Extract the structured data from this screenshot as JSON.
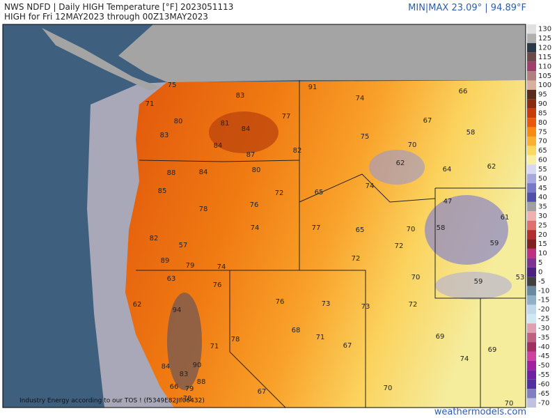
{
  "header": {
    "title": "NWS NDFD | Daily HIGH Temperature [°F]  2023051113",
    "subtitle": "HIGH for Fri 12MAY2023 through 00Z13MAY2023",
    "minmax": "MIN|MAX 23.09°  |  94.89°F"
  },
  "footer": {
    "credit": "Industry Energy according to our TOS ! (f5349E82JIf06432)",
    "brand": "weathermodels.com"
  },
  "colorbar": {
    "labels": [
      130,
      125,
      120,
      115,
      110,
      105,
      100,
      95,
      90,
      85,
      80,
      75,
      70,
      65,
      60,
      55,
      50,
      45,
      40,
      35,
      30,
      25,
      20,
      15,
      10,
      5,
      0,
      -5,
      -10,
      -15,
      -20,
      -25,
      -30,
      -35,
      -40,
      -45,
      -50,
      -55,
      -60,
      -65,
      -70
    ],
    "colors": [
      "#e0e0e0",
      "#b0b0b0",
      "#2a3a4a",
      "#6b4a4a",
      "#a0406a",
      "#b08080",
      "#d8b0a0",
      "#5a2a1a",
      "#8a2a10",
      "#c83a08",
      "#e85a0a",
      "#f88a10",
      "#fbb030",
      "#fbd860",
      "#f8f0a0",
      "#d8d8f0",
      "#a8a8e0",
      "#7878c8",
      "#5050a8",
      "#a0a0a0",
      "#f0b0b0",
      "#e07070",
      "#b03030",
      "#802020",
      "#c03080",
      "#803090",
      "#4a2080",
      "#404040",
      "#6a8aa0",
      "#90b0c8",
      "#c0d8e8",
      "#d0e8f0",
      "#e0a0b0",
      "#c06080",
      "#a03060",
      "#d040a0",
      "#a020a0",
      "#7020a0",
      "#5030a0",
      "#8080c0",
      "#c0c0e0"
    ]
  },
  "map": {
    "labels": [
      75,
      71,
      83,
      91,
      74,
      66,
      80,
      81,
      84,
      77,
      67,
      83,
      84,
      87,
      82,
      75,
      58,
      70,
      62,
      62,
      64,
      88,
      84,
      80,
      74,
      85,
      72,
      65,
      76,
      78,
      47,
      61,
      77,
      74,
      65,
      70,
      58,
      82,
      72,
      57,
      59,
      72,
      89,
      79,
      74,
      63,
      76,
      70,
      59,
      53,
      76,
      73,
      73,
      72,
      62,
      94,
      68,
      71,
      69,
      78,
      71,
      67,
      69,
      74,
      84,
      90,
      83,
      88,
      79,
      66,
      70,
      67,
      78,
      70
    ]
  }
}
